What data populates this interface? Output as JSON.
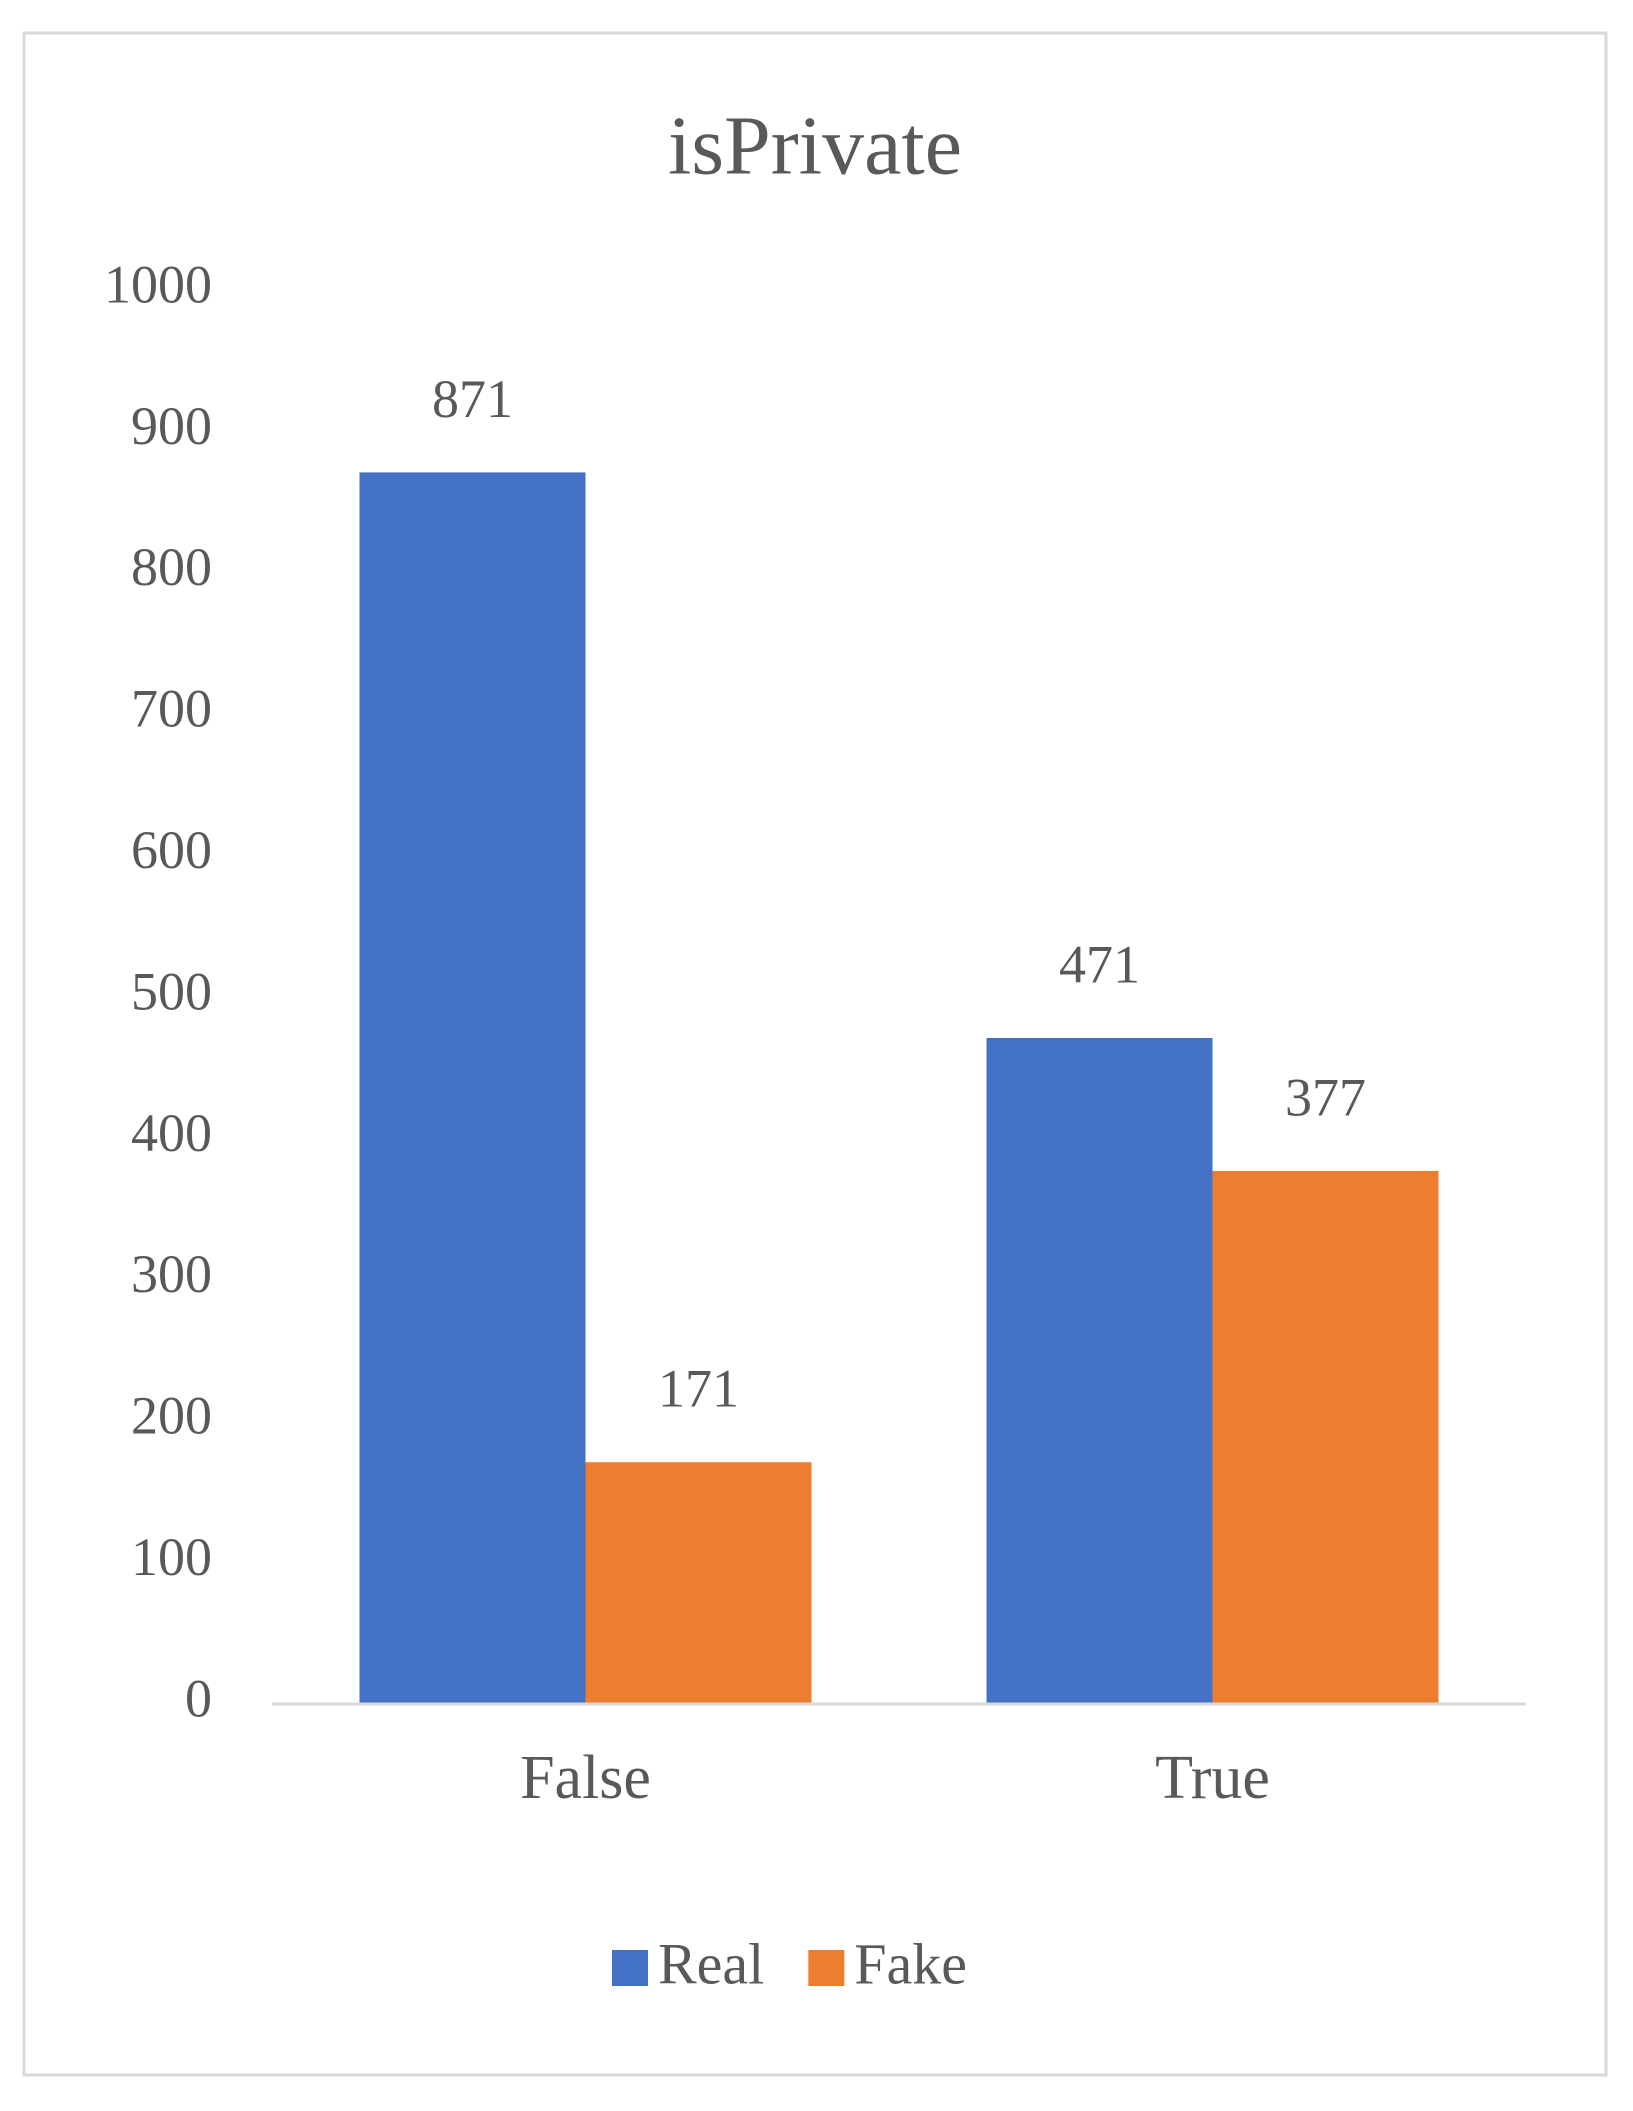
{
  "chart_data": {
    "type": "bar",
    "title": "isPrivate",
    "categories": [
      "False",
      "True"
    ],
    "series": [
      {
        "name": "Real",
        "color": "#4472c4",
        "values": [
          871,
          471
        ]
      },
      {
        "name": "Fake",
        "color": "#ed7d31",
        "values": [
          171,
          377
        ]
      }
    ],
    "ylim": [
      0,
      1000
    ],
    "yticks": [
      0,
      100,
      200,
      300,
      400,
      500,
      600,
      700,
      800,
      900,
      1000
    ],
    "grid": false,
    "legend": "bottom"
  }
}
